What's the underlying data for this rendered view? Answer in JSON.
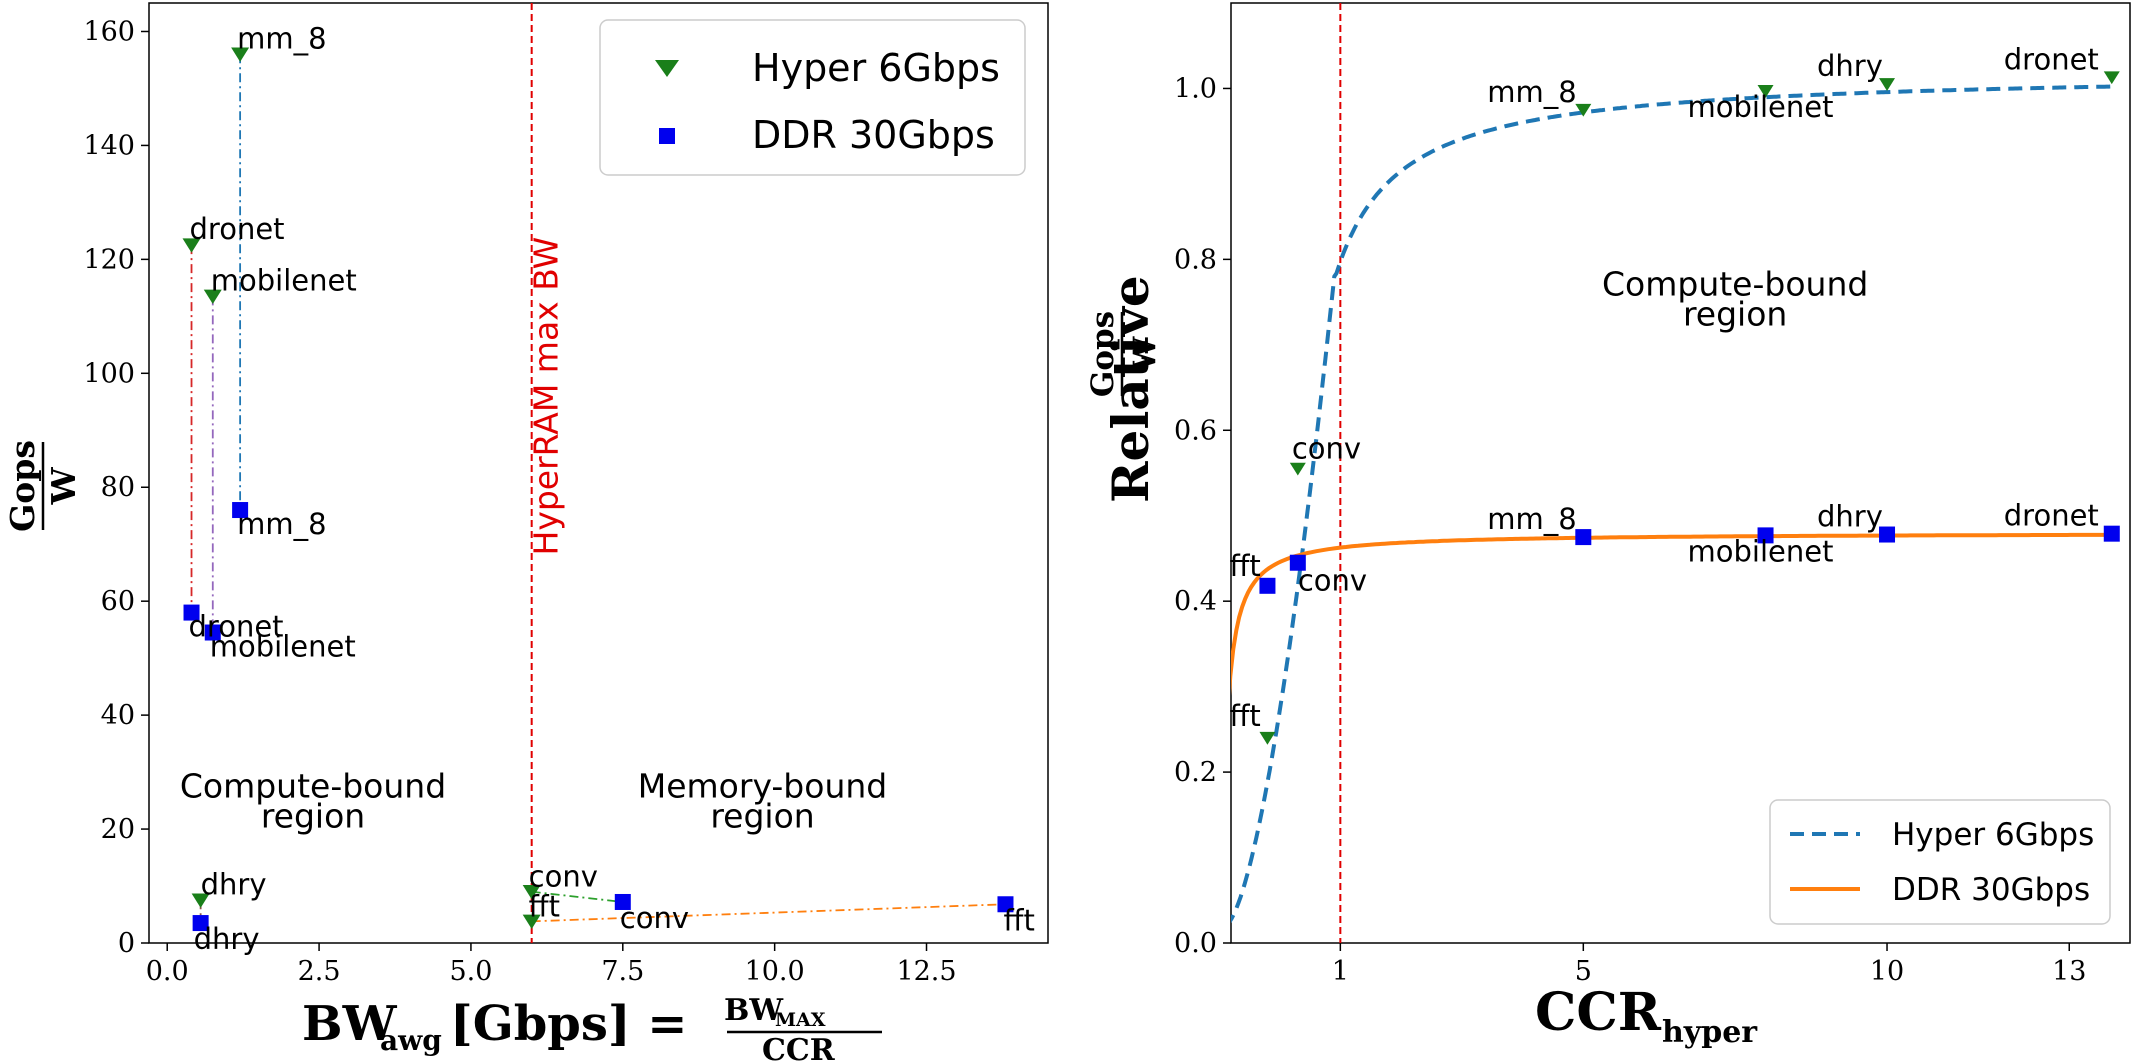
{
  "colors": {
    "hyper": "#1a7f1a",
    "ddr": "#0000ee",
    "hyper_line": "#1f77b4",
    "ddr_line": "#ff7f0e",
    "bw_line": "#e00000"
  },
  "chart_data": [
    {
      "type": "scatter",
      "xlabel": {
        "main": "BW",
        "sub": "awg",
        "rest": "[Gbps] =",
        "frac_num_main": "BW",
        "frac_num_sub": "MAX",
        "frac_den": "CCR"
      },
      "ylabel": {
        "num": "Gops",
        "den": "W"
      },
      "xlim": [
        -0.3,
        14.5
      ],
      "ylim": [
        0,
        165
      ],
      "xticks": [
        0.0,
        2.5,
        5.0,
        7.5,
        10.0,
        12.5
      ],
      "xtick_labels": [
        "0.0",
        "2.5",
        "5.0",
        "7.5",
        "10.0",
        "12.5"
      ],
      "yticks": [
        0,
        20,
        40,
        60,
        80,
        100,
        120,
        140,
        160
      ],
      "ytick_labels": [
        "0",
        "20",
        "40",
        "60",
        "80",
        "100",
        "120",
        "140",
        "160"
      ],
      "vline": {
        "x": 6.0,
        "label": "HyperRAM max BW"
      },
      "regions": [
        {
          "line1": "Compute-bound",
          "line2": "region",
          "x": 2.4,
          "y": 25.5
        },
        {
          "line1": "Memory-bound",
          "line2": "region",
          "x": 9.8,
          "y": 25.5
        }
      ],
      "legend": [
        "Hyper 6Gbps",
        "DDR 30Gbps"
      ],
      "series": [
        {
          "name": "Hyper 6Gbps",
          "marker": "triangle",
          "points": [
            {
              "label": "mm_8",
              "x": 1.2,
              "y": 156
            },
            {
              "label": "dronet",
              "x": 0.4,
              "y": 122.5
            },
            {
              "label": "mobilenet",
              "x": 0.75,
              "y": 113.5
            },
            {
              "label": "dhry",
              "x": 0.55,
              "y": 7.5
            },
            {
              "label": "conv",
              "x": 6.0,
              "y": 9
            },
            {
              "label": "fft",
              "x": 6.0,
              "y": 3.8
            }
          ]
        },
        {
          "name": "DDR 30Gbps",
          "marker": "square",
          "points": [
            {
              "label": "mm_8",
              "x": 1.2,
              "y": 76
            },
            {
              "label": "dronet",
              "x": 0.4,
              "y": 58
            },
            {
              "label": "mobilenet",
              "x": 0.75,
              "y": 54.5
            },
            {
              "label": "dhry",
              "x": 0.55,
              "y": 3.5
            },
            {
              "label": "conv",
              "x": 7.5,
              "y": 7.2
            },
            {
              "label": "fft",
              "x": 13.8,
              "y": 6.8
            }
          ]
        }
      ]
    },
    {
      "type": "line",
      "xlabel": {
        "main": "CCR",
        "sub": "hyper"
      },
      "ylabel": {
        "prefix": "Relative",
        "num": "Gops",
        "den": "W"
      },
      "xlim": [
        -0.8,
        14.0
      ],
      "ylim": [
        0,
        1.1
      ],
      "xticks": [
        1,
        5,
        10,
        13
      ],
      "xtick_labels": [
        "1",
        "5",
        "10",
        "13"
      ],
      "yticks": [
        0.0,
        0.2,
        0.4,
        0.6,
        0.8,
        1.0
      ],
      "ytick_labels": [
        "0.0",
        "0.2",
        "0.4",
        "0.6",
        "0.8",
        "1.0"
      ],
      "vline": {
        "x": 1.0
      },
      "region": {
        "line1": "Compute-bound",
        "line2": "region",
        "x": 7.5,
        "y": 0.8
      },
      "legend": [
        "Hyper 6Gbps",
        "DDR 30Gbps"
      ],
      "series": [
        {
          "name": "Hyper 6Gbps",
          "style": "dashed",
          "marker": "triangle",
          "points": [
            {
              "label": "fft",
              "x": -0.2,
              "y": 0.24
            },
            {
              "label": "conv",
              "x": 0.3,
              "y": 0.555
            },
            {
              "label": "mm_8",
              "x": 5.0,
              "y": 0.975
            },
            {
              "label": "mobilenet",
              "x": 8.0,
              "y": 0.997
            },
            {
              "label": "dhry",
              "x": 10.0,
              "y": 1.005
            },
            {
              "label": "dronet",
              "x": 13.7,
              "y": 1.013
            }
          ]
        },
        {
          "name": "DDR 30Gbps",
          "style": "solid",
          "marker": "square",
          "points": [
            {
              "label": "fft",
              "x": -0.2,
              "y": 0.418
            },
            {
              "label": "conv",
              "x": 0.3,
              "y": 0.445
            },
            {
              "label": "mm_8",
              "x": 5.0,
              "y": 0.475
            },
            {
              "label": "mobilenet",
              "x": 8.0,
              "y": 0.477
            },
            {
              "label": "dhry",
              "x": 10.0,
              "y": 0.478
            },
            {
              "label": "dronet",
              "x": 13.7,
              "y": 0.479
            }
          ]
        }
      ]
    }
  ]
}
